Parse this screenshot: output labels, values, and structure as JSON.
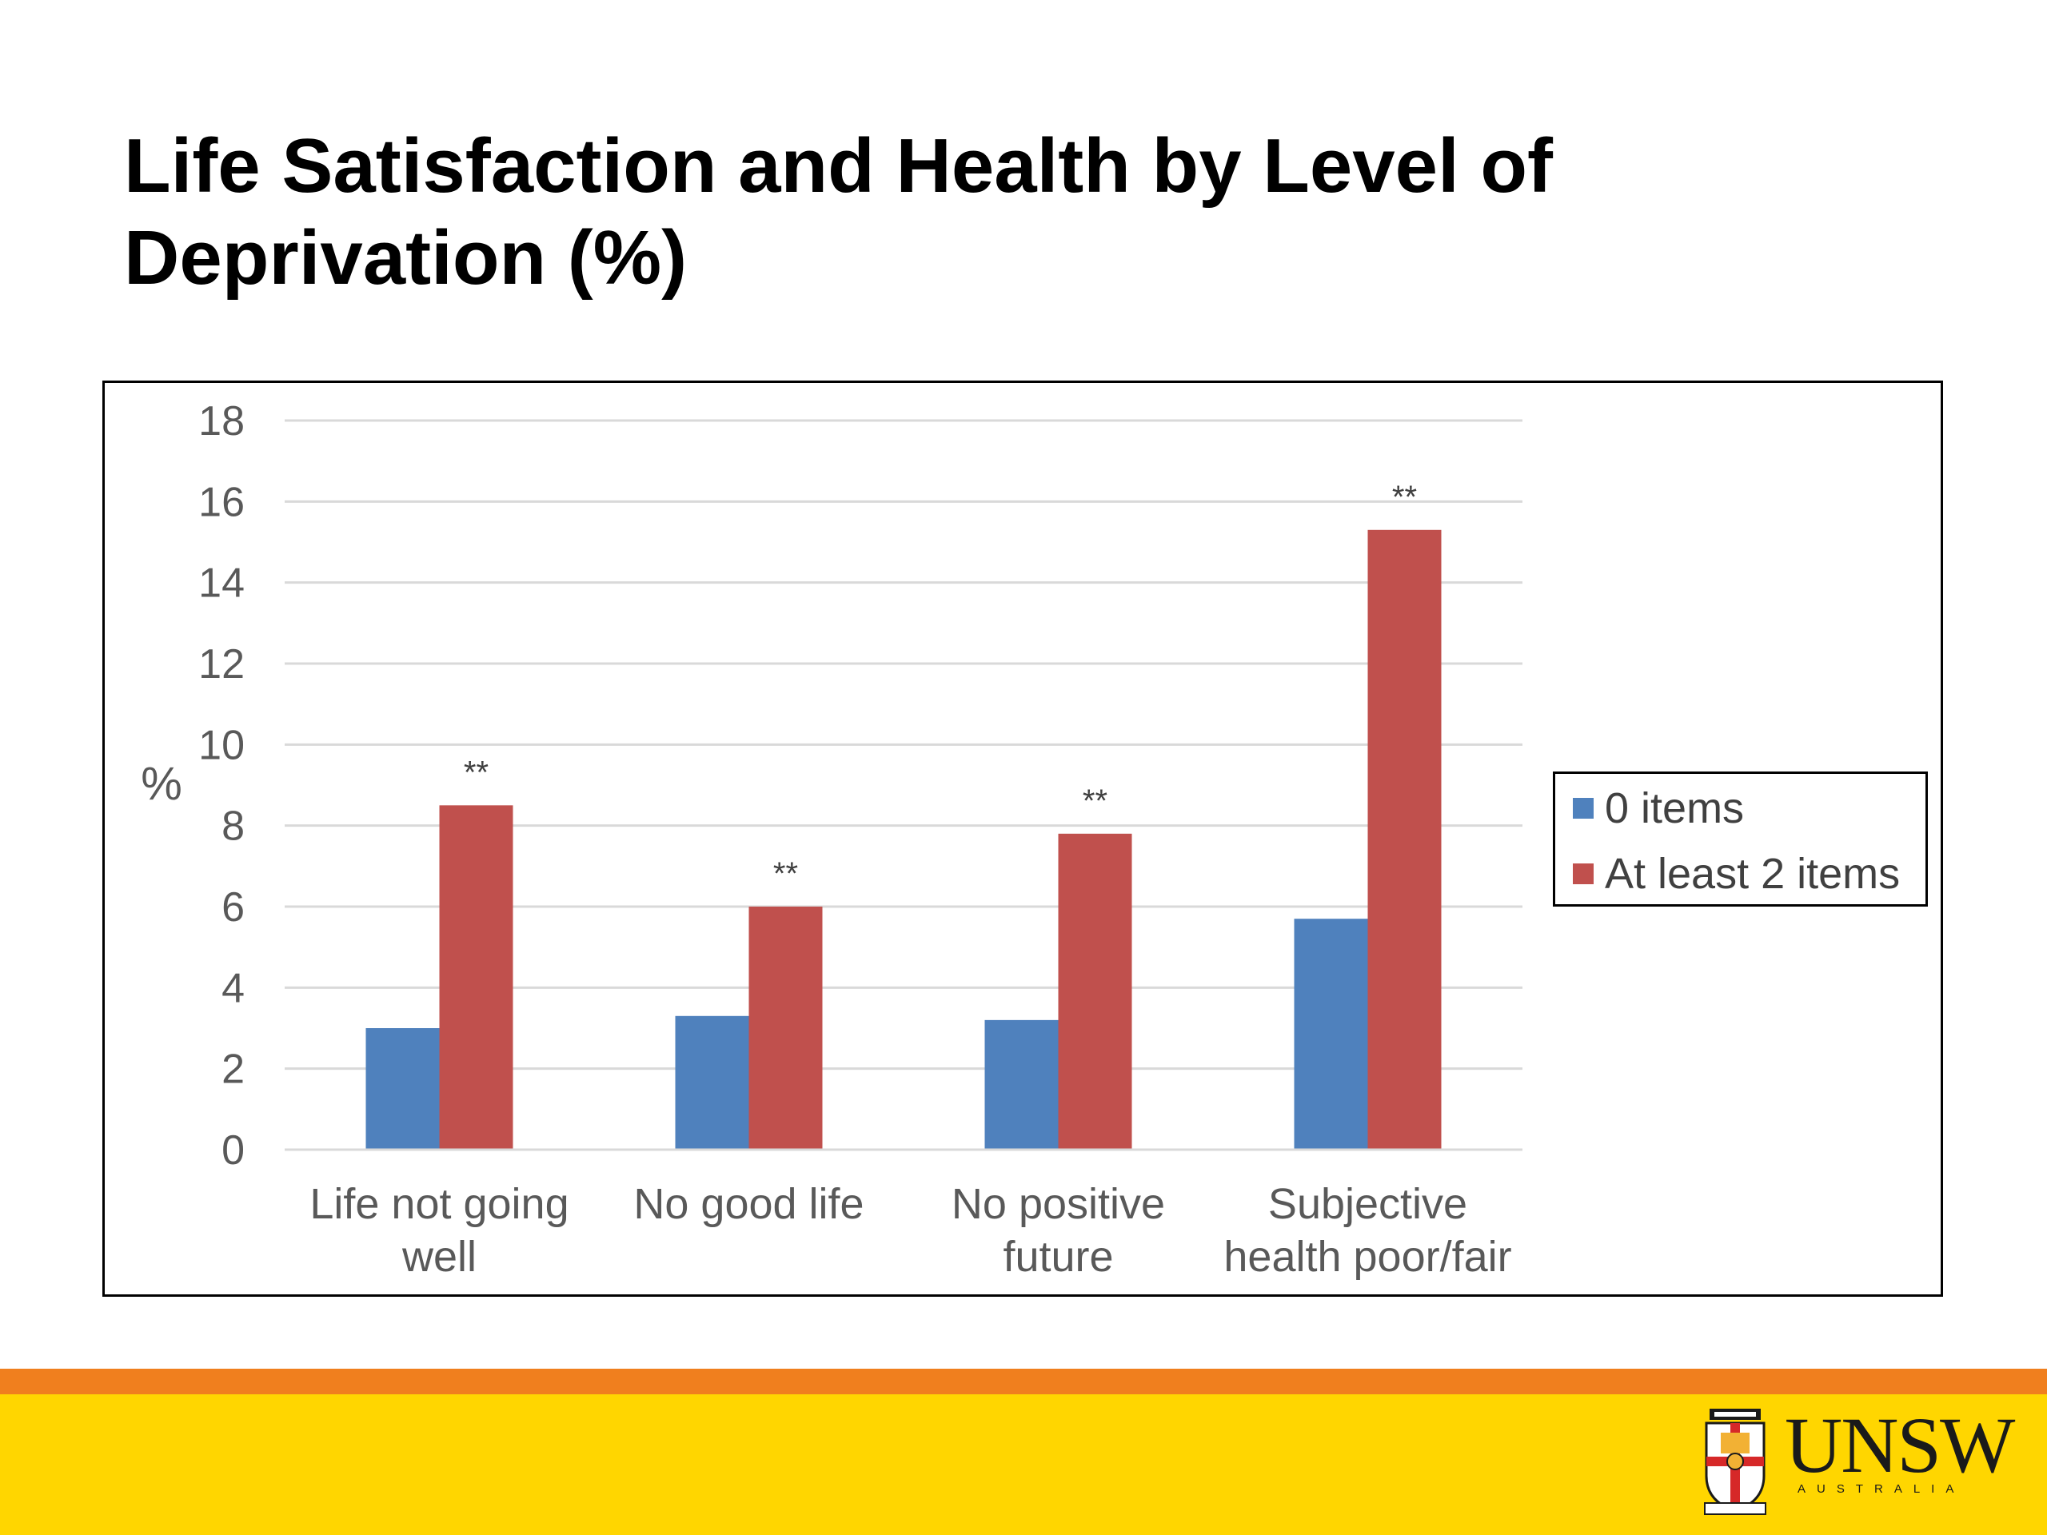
{
  "slide": {
    "title": "Life Satisfaction and Health by Level of Deprivation (%)"
  },
  "chart_data": {
    "type": "bar",
    "ylabel": "%",
    "ylim": [
      0,
      18
    ],
    "yticks": [
      0,
      2,
      4,
      6,
      8,
      10,
      12,
      14,
      16,
      18
    ],
    "grid": true,
    "legend_position": "right",
    "categories": [
      [
        "Life not going",
        "well"
      ],
      [
        "No good life"
      ],
      [
        "No positive",
        "future"
      ],
      [
        "Subjective",
        "health poor/fair"
      ]
    ],
    "series": [
      {
        "name": "0 items",
        "color": "#4f81bd",
        "values": [
          3.0,
          3.3,
          3.2,
          5.7
        ]
      },
      {
        "name": "At least 2 items",
        "color": "#c0504d",
        "values": [
          8.5,
          6.0,
          7.8,
          15.3
        ]
      }
    ],
    "annotations": [
      "**",
      "**",
      "**",
      "**"
    ]
  },
  "footer": {
    "stripe_color": "#f07f1e",
    "band_color": "#ffd600",
    "logo_icon": "unsw-crest-icon",
    "logo_text": "UNSW",
    "logo_subtext": "AUSTRALIA"
  }
}
